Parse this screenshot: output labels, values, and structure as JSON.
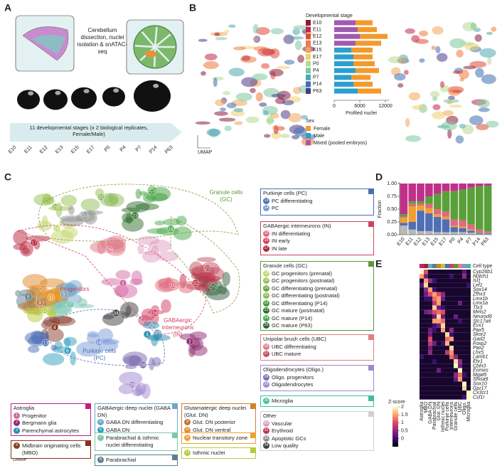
{
  "panel_letters": [
    "A",
    "B",
    "C",
    "D",
    "E"
  ],
  "panel_a": {
    "protocol": "Cerebellum dissection, nuclei isolation & snATAC-seq",
    "stages_note": "11 developmental stages (x 2 biological replicates, Female/Male)"
  },
  "umap_label": "UMAP",
  "chart_data": [
    {
      "type": "hbar_stacked",
      "legend_title": "Developmental stage",
      "categories": [
        "E10",
        "E11",
        "E12",
        "E13",
        "E15",
        "E17",
        "P0",
        "P4",
        "P7",
        "P14",
        "P63"
      ],
      "category_colors": [
        "#8b1a3a",
        "#c02848",
        "#e04a3a",
        "#f07a3a",
        "#f4a55a",
        "#f0d070",
        "#b8d890",
        "#7ec8a0",
        "#50a8b0",
        "#4070b0",
        "#4a3a8a"
      ],
      "sex_title": "Sex",
      "series": [
        {
          "name": "Female",
          "color": "#f39a2b",
          "values": [
            4000,
            4500,
            6500,
            6000,
            5000,
            4500,
            5000,
            5500,
            4500,
            4500,
            5500
          ]
        },
        {
          "name": "Male",
          "color": "#2b9fd0",
          "values": [
            0,
            0,
            0,
            0,
            4000,
            4500,
            4500,
            5000,
            4000,
            4500,
            5500
          ]
        },
        {
          "name": "Mixed (pooled embryos)",
          "color": "#a05ab0",
          "values": [
            5000,
            5500,
            6000,
            5000,
            0,
            0,
            0,
            0,
            0,
            0,
            0
          ]
        }
      ],
      "xlabel": "Profiled nuclei",
      "xlim": [
        0,
        13000
      ],
      "xticks": [
        0,
        6000,
        12000
      ]
    },
    {
      "type": "stacked_bar",
      "ylabel": "Fraction",
      "categories": [
        "E10",
        "E11",
        "E12",
        "E13",
        "E15",
        "E17",
        "P0",
        "P4",
        "P7",
        "P14",
        "P63"
      ],
      "ylim": [
        0,
        1
      ],
      "yticks": [
        {
          "value": 0,
          "label": "0.00"
        },
        {
          "value": 0.25,
          "label": "0.25"
        },
        {
          "value": 0.5,
          "label": "0.50"
        },
        {
          "value": 0.75,
          "label": "0.75"
        },
        {
          "value": 1,
          "label": "1.00"
        }
      ],
      "series": [
        {
          "color": "#b8b8b8",
          "values": [
            0.18,
            0.1,
            0.07,
            0.07,
            0.05,
            0.05,
            0.05,
            0.05,
            0.04,
            0.02,
            0.02
          ]
        },
        {
          "color": "#4f6fb5",
          "values": [
            0.05,
            0.15,
            0.4,
            0.35,
            0.3,
            0.25,
            0.1,
            0.08,
            0.04,
            0.02,
            0.01
          ]
        },
        {
          "color": "#f0a030",
          "values": [
            0.1,
            0.3,
            0.1,
            0.1,
            0.05,
            0.05,
            0.03,
            0.03,
            0.02,
            0.01,
            0
          ]
        },
        {
          "color": "#e06a7a",
          "values": [
            0.02,
            0.05,
            0.03,
            0.08,
            0.1,
            0.1,
            0.12,
            0.12,
            0.1,
            0.05,
            0.03
          ]
        },
        {
          "color": "#5aa03a",
          "values": [
            0.05,
            0.05,
            0.05,
            0.15,
            0.3,
            0.4,
            0.55,
            0.6,
            0.72,
            0.85,
            0.9
          ]
        },
        {
          "color": "#c0308a",
          "values": [
            0.6,
            0.35,
            0.35,
            0.25,
            0.2,
            0.15,
            0.15,
            0.12,
            0.08,
            0.05,
            0.04
          ]
        }
      ]
    },
    {
      "type": "heatmap",
      "column_label": "Cell type",
      "colorbar_title": "Z-score",
      "columns": [
        "Astroglia",
        "MBO",
        "GABA DN",
        "Parabrachial",
        "Glut. DN",
        "Isthmic nuclei",
        "Purkinje cells",
        "Interneurons",
        "Granule cells",
        "UBC",
        "Oligo.",
        "Microglia"
      ],
      "column_colors": [
        "#c02080",
        "#8a3020",
        "#6fa6c9",
        "#5b7f8f",
        "#d08030",
        "#b8c93a",
        "#4a6fb5",
        "#d04060",
        "#5a9a3a",
        "#e08080",
        "#9a8ad0",
        "#3fbf9a"
      ],
      "rows": [
        "Cyp26b1",
        "Notch1",
        "Isl1",
        "Lef1",
        "Sox14",
        "Zfhx3",
        "Lmx1b",
        "Lmx1a",
        "Tlx3",
        "Meis2",
        "Neurod6",
        "Slc17a6",
        "Evx1",
        "Pax5",
        "Skor2",
        "Gad2",
        "Foxp2",
        "Pax2",
        "Lhx5",
        "Lamb1",
        "Etv1",
        "Cbln3",
        "Eomes",
        "Mgat5",
        "Shisa9",
        "Sox10",
        "Gpr17",
        "Cx3cr1",
        "Csf1r"
      ],
      "values": [
        [
          2,
          1,
          -0.3,
          -0.3,
          -0.3,
          -0.3,
          -0.3,
          -0.3,
          -0.3,
          -0.3,
          0.2,
          -0.3
        ],
        [
          1.5,
          0.3,
          -0.3,
          -0.3,
          -0.3,
          -0.3,
          -0.3,
          0,
          -0.3,
          -0.3,
          0.5,
          -0.3
        ],
        [
          -0.3,
          1.5,
          0.5,
          0,
          -0.3,
          -0.3,
          -0.3,
          -0.3,
          -0.3,
          -0.3,
          -0.3,
          -0.3
        ],
        [
          0.2,
          1.8,
          -0.3,
          -0.3,
          -0.3,
          -0.3,
          -0.3,
          -0.3,
          -0.3,
          -0.3,
          -0.3,
          0
        ],
        [
          -0.3,
          0.5,
          1.5,
          0,
          -0.3,
          -0.3,
          -0.3,
          -0.3,
          -0.3,
          -0.3,
          -0.3,
          -0.3
        ],
        [
          -0.3,
          0.3,
          1,
          1.5,
          1,
          0.5,
          -0.3,
          -0.3,
          -0.3,
          -0.3,
          -0.3,
          -0.3
        ],
        [
          -0.3,
          0,
          0,
          1.2,
          1.5,
          0.3,
          -0.3,
          -0.3,
          -0.3,
          -0.3,
          -0.3,
          -0.3
        ],
        [
          -0.3,
          -0.3,
          -0.3,
          0.8,
          1.5,
          -0.3,
          -0.3,
          -0.3,
          -0.3,
          0.3,
          -0.3,
          -0.3
        ],
        [
          -0.3,
          -0.3,
          -0.3,
          1.8,
          0.3,
          0,
          -0.3,
          -0.3,
          -0.3,
          -0.3,
          -0.3,
          -0.3
        ],
        [
          -0.3,
          0.3,
          0.5,
          1,
          1.2,
          1,
          -0.3,
          -0.3,
          -0.3,
          -0.3,
          -0.3,
          -0.3
        ],
        [
          -0.3,
          -0.3,
          -0.3,
          0.3,
          1.8,
          0.3,
          -0.3,
          -0.3,
          0.3,
          -0.3,
          -0.3,
          -0.3
        ],
        [
          -0.3,
          -0.3,
          -0.3,
          1.5,
          1.5,
          1.2,
          -0.3,
          -0.3,
          -0.3,
          0,
          -0.3,
          -0.3
        ],
        [
          -0.3,
          -0.3,
          -0.3,
          0,
          0.3,
          1.8,
          -0.3,
          -0.3,
          -0.3,
          -0.3,
          -0.3,
          -0.3
        ],
        [
          -0.3,
          -0.3,
          0.3,
          0,
          -0.3,
          1.5,
          -0.3,
          0.5,
          -0.3,
          -0.3,
          -0.3,
          -0.3
        ],
        [
          -0.3,
          -0.3,
          0.3,
          -0.3,
          -0.3,
          -0.3,
          1.8,
          0,
          -0.3,
          -0.3,
          -0.3,
          -0.3
        ],
        [
          -0.3,
          -0.3,
          1,
          -0.3,
          -0.3,
          -0.3,
          1.2,
          1.5,
          -0.3,
          -0.3,
          -0.3,
          -0.3
        ],
        [
          -0.3,
          -0.3,
          0.8,
          0.3,
          -0.3,
          0,
          1.6,
          -0.3,
          -0.3,
          -0.3,
          -0.3,
          -0.3
        ],
        [
          -0.3,
          -0.3,
          0.3,
          -0.3,
          -0.3,
          -0.3,
          -0.3,
          1.8,
          -0.3,
          -0.3,
          -0.3,
          -0.3
        ],
        [
          -0.3,
          -0.3,
          0.5,
          -0.3,
          -0.3,
          -0.3,
          0.8,
          1.4,
          -0.3,
          -0.3,
          -0.3,
          -0.3
        ],
        [
          0,
          -0.3,
          -0.3,
          -0.3,
          -0.3,
          -0.3,
          -0.3,
          1.2,
          0.5,
          -0.3,
          -0.3,
          -0.3
        ],
        [
          -0.3,
          -0.3,
          -0.3,
          0,
          -0.3,
          -0.3,
          -0.3,
          -0.3,
          1.8,
          0.5,
          -0.3,
          -0.3
        ],
        [
          -0.3,
          -0.3,
          -0.3,
          -0.3,
          -0.3,
          -0.3,
          -0.3,
          -0.3,
          2,
          0.3,
          -0.3,
          -0.3
        ],
        [
          -0.3,
          -0.3,
          -0.3,
          -0.3,
          0.3,
          -0.3,
          -0.3,
          -0.3,
          -0.3,
          2,
          -0.3,
          -0.3
        ],
        [
          -0.3,
          -0.3,
          -0.3,
          -0.3,
          -0.3,
          -0.3,
          -0.3,
          -0.3,
          0.5,
          1.2,
          0,
          -0.3
        ],
        [
          -0.3,
          -0.3,
          -0.3,
          -0.3,
          -0.3,
          -0.3,
          -0.3,
          -0.3,
          0.3,
          1.5,
          -0.3,
          -0.3
        ],
        [
          -0.3,
          -0.3,
          -0.3,
          -0.3,
          -0.3,
          -0.3,
          -0.3,
          -0.3,
          -0.3,
          -0.3,
          2,
          -0.3
        ],
        [
          -0.3,
          -0.3,
          -0.3,
          -0.3,
          -0.3,
          -0.3,
          -0.3,
          -0.3,
          -0.3,
          -0.3,
          1.8,
          -0.3
        ],
        [
          -0.3,
          -0.3,
          -0.3,
          -0.3,
          -0.3,
          -0.3,
          -0.3,
          -0.3,
          -0.3,
          -0.3,
          -0.3,
          2
        ],
        [
          -0.3,
          -0.3,
          -0.3,
          -0.3,
          -0.3,
          -0.3,
          -0.3,
          -0.3,
          -0.3,
          -0.3,
          0,
          2
        ]
      ],
      "zlim": [
        -0.5,
        2
      ],
      "zticks": [
        0,
        0.5,
        1,
        1.5,
        2
      ]
    }
  ],
  "umap_c": {
    "cluster_labels": [
      "19",
      "21",
      "22",
      "18",
      "33",
      "23",
      "24",
      "25",
      "26",
      "17",
      "31",
      "27",
      "32",
      "15",
      "16",
      "1",
      "2",
      "3",
      "4",
      "5",
      "6",
      "7",
      "8",
      "9",
      "10",
      "11",
      "12",
      "13",
      "14",
      "28",
      "29",
      "34"
    ],
    "region_labels": [
      "Granule cells (GC)",
      "Progenitors",
      "GABAergic interneurons (IN)",
      "Purkinje cells (PC)"
    ]
  },
  "cell_types": [
    {
      "title": "Purkinje cells (PC)",
      "color": "#4a6fb5",
      "items": [
        {
          "n": "13",
          "label": "PC differentiating",
          "color": "#4f6fb5"
        },
        {
          "n": "14",
          "label": "PC",
          "color": "#7a9ad6"
        }
      ]
    },
    {
      "title": "GABAergic interneurons (IN)",
      "color": "#d04060",
      "items": [
        {
          "n": "15",
          "label": "IN differentiating",
          "color": "#e06a7a"
        },
        {
          "n": "16",
          "label": "IN early",
          "color": "#d04060"
        },
        {
          "n": "17",
          "label": "IN late",
          "color": "#b8233a"
        }
      ]
    },
    {
      "title": "Granule cells (GC)",
      "color": "#5a9a3a",
      "items": [
        {
          "n": "18",
          "label": "GC progenitors (prenatal)",
          "color": "#c2d86a"
        },
        {
          "n": "19",
          "label": "GC progenitors (postnatal)",
          "color": "#95c24e"
        },
        {
          "n": "20",
          "label": "GC differentiating (prenatal)",
          "color": "#6aa03a"
        },
        {
          "n": "21",
          "label": "GC differentiating (postnatal)",
          "color": "#8fbc5a"
        },
        {
          "n": "22",
          "label": "GC differentiating (P14)",
          "color": "#3f9f3a"
        },
        {
          "n": "23",
          "label": "GC mature (postnatal)",
          "color": "#2f6f2a"
        },
        {
          "n": "24",
          "label": "GC mature (P14)",
          "color": "#4aaa4a"
        },
        {
          "n": "25",
          "label": "GC mature (P63)",
          "color": "#2f5f3a"
        }
      ]
    },
    {
      "title": "Unipolar brush cells (UBC)",
      "color": "#e08080",
      "items": [
        {
          "n": "26",
          "label": "UBC differentiating",
          "color": "#e07a8a"
        },
        {
          "n": "27",
          "label": "UBC mature",
          "color": "#c25060"
        }
      ]
    },
    {
      "title": "Oligodendrocytes (Oligo.)",
      "color": "#9a8ad0",
      "items": [
        {
          "n": "28",
          "label": "Oligo. progenitors",
          "color": "#7a6ab0"
        },
        {
          "n": "29",
          "label": "Oligodendrocytes",
          "color": "#a08ad0"
        }
      ]
    },
    {
      "color": "#3fbf9a",
      "items": [
        {
          "n": "30",
          "label": "Microglia",
          "color": "#3fbf9a"
        }
      ]
    },
    {
      "title": "Other",
      "color": "#d0d0d0",
      "items": [
        {
          "n": "31",
          "label": "Vascular",
          "color": "#e0a0c0"
        },
        {
          "n": "32",
          "label": "Erythroid",
          "color": "#c0304a"
        },
        {
          "n": "33",
          "label": "Apoptotic GCs",
          "color": "#909090"
        },
        {
          "n": "34",
          "label": "Low quality",
          "color": "#404040"
        }
      ]
    },
    {
      "title": "Astroglia",
      "color": "#c02080",
      "items": [
        {
          "n": "1",
          "label": "Progenitor",
          "color": "#d36aa3"
        },
        {
          "n": "2",
          "label": "Bergmann glia",
          "color": "#8e2a6e"
        },
        {
          "n": "3",
          "label": "Parenchymal astrocytes",
          "color": "#2a8fb3"
        }
      ]
    },
    {
      "color": "#8a3020",
      "items": [
        {
          "n": "4",
          "label": "Midbrain originating cells (MBO)",
          "color": "#8a3d2a"
        }
      ]
    },
    {
      "title": "GABAergic deep nuclei (GABA DN)",
      "color": "#6fa6c9",
      "items": [
        {
          "n": "5",
          "label": "GABA DN differentiating",
          "color": "#6fa6c9"
        },
        {
          "n": "6",
          "label": "GABA DN",
          "color": "#2fa0c0"
        }
      ]
    },
    {
      "color": "#7bc6b0",
      "items": [
        {
          "n": "7",
          "label": "Parabrachial & isthmic nuclei differentiating",
          "color": "#7bc6b0"
        }
      ]
    },
    {
      "color": "#5b7f8f",
      "items": [
        {
          "n": "8",
          "label": "Parabrachial",
          "color": "#5b7f8f"
        }
      ]
    },
    {
      "title": "Glutamatergic deep nuclei (Glut. DN)",
      "color": "#d08030",
      "items": [
        {
          "n": "9",
          "label": "Glut. DN posterior",
          "color": "#b87b3d"
        },
        {
          "n": "10",
          "label": "Glut. DN ventral",
          "color": "#e08a2a"
        }
      ]
    },
    {
      "color": "#f0a030",
      "items": [
        {
          "n": "11",
          "label": "Nuclear transitory zone",
          "color": "#f0a030"
        }
      ]
    },
    {
      "color": "#b8c93a",
      "items": [
        {
          "n": "12",
          "label": "Isthmic nuclei",
          "color": "#b8c93a"
        }
      ]
    }
  ]
}
